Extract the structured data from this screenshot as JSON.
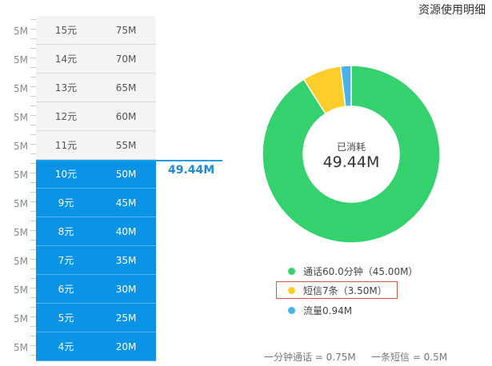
{
  "header": {
    "title": "资源使用明细"
  },
  "scale": {
    "label": "5M",
    "count": 12
  },
  "tiers": [
    {
      "price": "15元",
      "data": "75M",
      "used": false
    },
    {
      "price": "14元",
      "data": "70M",
      "used": false
    },
    {
      "price": "13元",
      "data": "65M",
      "used": false
    },
    {
      "price": "12元",
      "data": "60M",
      "used": false
    },
    {
      "price": "11元",
      "data": "55M",
      "used": false
    },
    {
      "price": "10元",
      "data": "50M",
      "used": true
    },
    {
      "price": "9元",
      "data": "45M",
      "used": true
    },
    {
      "price": "8元",
      "data": "40M",
      "used": true
    },
    {
      "price": "7元",
      "data": "35M",
      "used": true
    },
    {
      "price": "6元",
      "data": "30M",
      "used": true
    },
    {
      "price": "5元",
      "data": "25M",
      "used": true
    },
    {
      "price": "4元",
      "data": "20M",
      "used": true
    }
  ],
  "usage_marker": {
    "value": "49.44M"
  },
  "chart_data": {
    "type": "pie",
    "donut": true,
    "center_label": "已消耗",
    "center_value": "49.44M",
    "slices": [
      {
        "label": "通话60.0分钟（45.00M）",
        "value": 45.0,
        "color": "#35d16f"
      },
      {
        "label": "短信7条（3.50M）",
        "value": 3.5,
        "color": "#fdcd2b",
        "highlighted": true
      },
      {
        "label": "流量0.94M",
        "value": 0.94,
        "color": "#4ab3e8"
      }
    ]
  },
  "footnotes": {
    "call": "一分钟通话 = 0.75M",
    "sms": "一条短信 = 0.5M"
  }
}
